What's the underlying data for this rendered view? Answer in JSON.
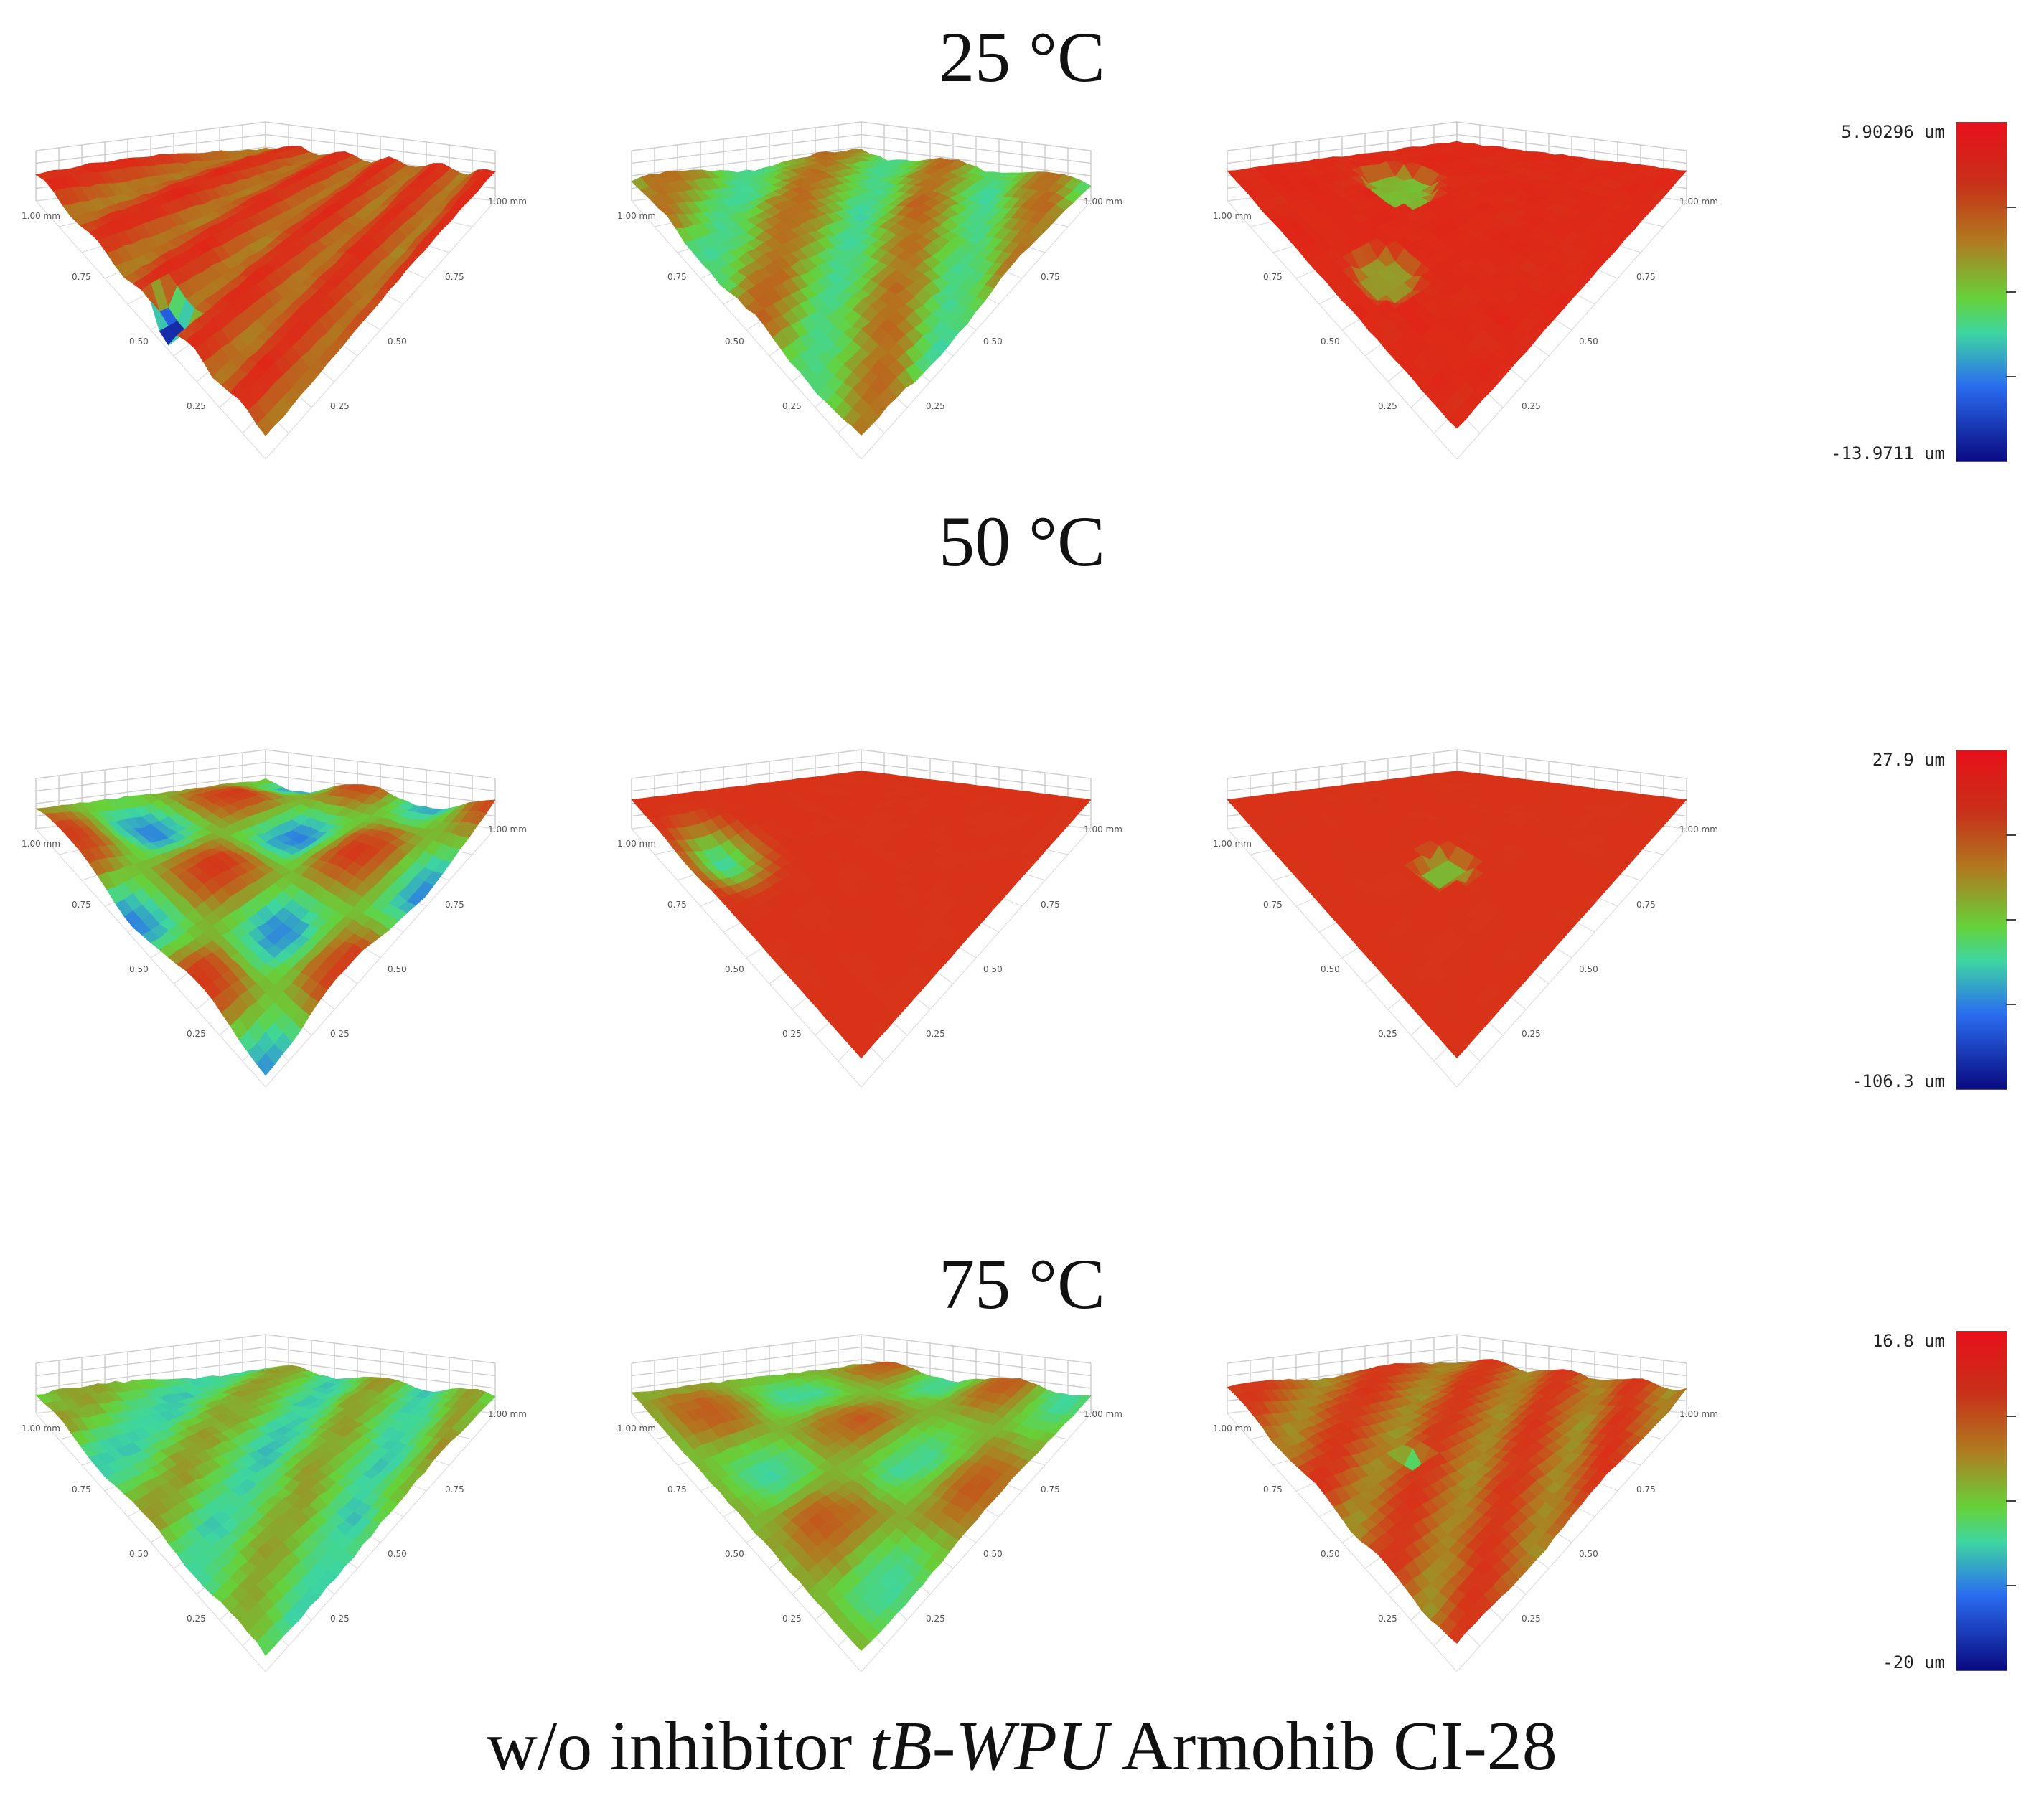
{
  "row_labels": {
    "t25": "25 °C",
    "t50": "50 °C",
    "t75": "75 °C"
  },
  "caption": {
    "part1": "w/o inhibitor ",
    "part2": "tB-WPU",
    "part3": " Armohib CI-28"
  },
  "axis_ticks": {
    "corner_left": "1.00 mm",
    "corner_right": "1.00 mm",
    "t075": "0.75",
    "t050": "0.50",
    "t025": "0.25"
  },
  "colorbars": [
    {
      "max": "5.90296 um",
      "min": "-13.9711 um"
    },
    {
      "max": "27.9 um",
      "min": "-106.3 um"
    },
    {
      "max": "16.8 um",
      "min": "-20 um"
    }
  ],
  "surfaces": [
    {
      "id": "25-wo",
      "palette": "orange-red"
    },
    {
      "id": "25-tbwpu",
      "palette": "green-orange"
    },
    {
      "id": "25-ci28",
      "palette": "red"
    },
    {
      "id": "50-wo",
      "palette": "green-red-blue"
    },
    {
      "id": "50-tbwpu",
      "palette": "dark-red-pit"
    },
    {
      "id": "50-ci28",
      "palette": "dark-red-flat"
    },
    {
      "id": "75-wo",
      "palette": "green-blue"
    },
    {
      "id": "75-tbwpu",
      "palette": "green-wavy"
    },
    {
      "id": "75-ci28",
      "palette": "orange-red-speckle"
    }
  ]
}
